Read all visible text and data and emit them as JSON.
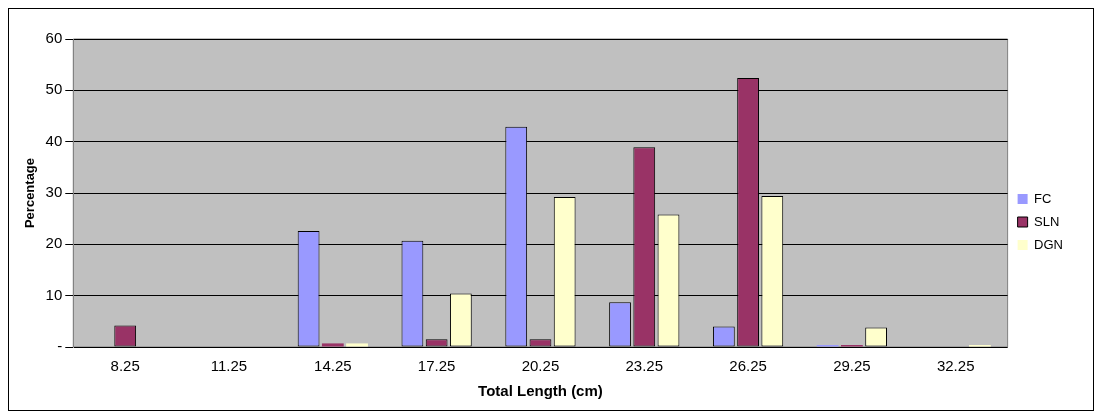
{
  "chart_data": {
    "type": "bar",
    "xlabel": "Total Length (cm)",
    "ylabel": "Percentage",
    "categories": [
      "8.25",
      "11.25",
      "14.25",
      "17.25",
      "20.25",
      "23.25",
      "26.25",
      "29.25",
      "32.25"
    ],
    "series": [
      {
        "name": "FC",
        "color": "#9999ff",
        "values": [
          0,
          0,
          22.6,
          20.7,
          42.9,
          8.7,
          4.0,
          0.4,
          0
        ]
      },
      {
        "name": "SLN",
        "color": "#993366",
        "values": [
          4.2,
          0,
          0.7,
          1.5,
          1.5,
          38.9,
          52.4,
          0.4,
          0
        ]
      },
      {
        "name": "DGN",
        "color": "#ffffcc",
        "values": [
          0,
          0,
          0.7,
          10.4,
          29.2,
          25.8,
          29.4,
          3.8,
          0.4
        ]
      }
    ],
    "ylim": [
      0,
      60
    ],
    "yticks": [
      {
        "value": 0,
        "label": "-"
      },
      10,
      20,
      30,
      40,
      50,
      60
    ],
    "grid": "y",
    "legend": "right"
  }
}
